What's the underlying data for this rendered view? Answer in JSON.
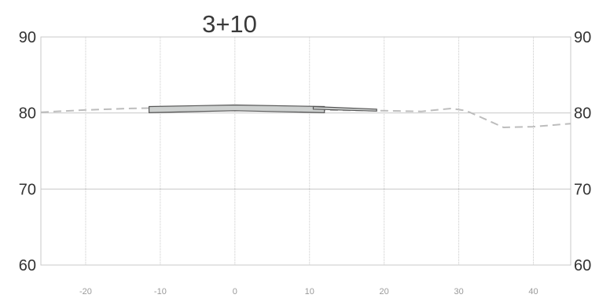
{
  "chart_data": {
    "type": "cross-section",
    "title": "3+10",
    "xlim": [
      -26,
      45
    ],
    "ylim": [
      60,
      90
    ],
    "x_ticks": [
      -20,
      -10,
      0,
      10,
      20,
      30,
      40
    ],
    "x_tick_labels": [
      "-20",
      "-10",
      "0",
      "10",
      "20",
      "30",
      "40"
    ],
    "y_ticks": [
      60,
      70,
      80,
      90
    ],
    "y_tick_labels": [
      "60",
      "70",
      "80",
      "90"
    ],
    "grid": true,
    "colors": {
      "grid": "#c8c8c8",
      "ground": "#bdbdbd",
      "slab_fill": "#cdd0cf",
      "slab_stroke": "#555555"
    },
    "series": [
      {
        "style": "dashed",
        "points": [
          {
            "x": -26,
            "y": 80.1
          },
          {
            "x": -20,
            "y": 80.4
          },
          {
            "x": -14,
            "y": 80.6
          },
          {
            "x": -8,
            "y": 80.7
          },
          {
            "x": 0,
            "y": 80.6
          },
          {
            "x": 10,
            "y": 80.4
          },
          {
            "x": 20,
            "y": 80.3
          },
          {
            "x": 25,
            "y": 80.2
          },
          {
            "x": 29,
            "y": 80.6
          },
          {
            "x": 31,
            "y": 80.3
          },
          {
            "x": 36,
            "y": 78.1
          },
          {
            "x": 40,
            "y": 78.2
          },
          {
            "x": 45,
            "y": 78.6
          }
        ]
      }
    ],
    "shapes": [
      {
        "style": "filled",
        "points": [
          {
            "x": -11.5,
            "y": 80.85
          },
          {
            "x": 0,
            "y": 81.05
          },
          {
            "x": 12,
            "y": 80.85
          },
          {
            "x": 12,
            "y": 80.05
          },
          {
            "x": 0,
            "y": 80.3
          },
          {
            "x": -11.5,
            "y": 80.05
          }
        ]
      },
      {
        "style": "filled",
        "points": [
          {
            "x": 10.5,
            "y": 80.85
          },
          {
            "x": 19,
            "y": 80.5
          },
          {
            "x": 19,
            "y": 80.25
          },
          {
            "x": 10.5,
            "y": 80.5
          }
        ]
      }
    ]
  }
}
